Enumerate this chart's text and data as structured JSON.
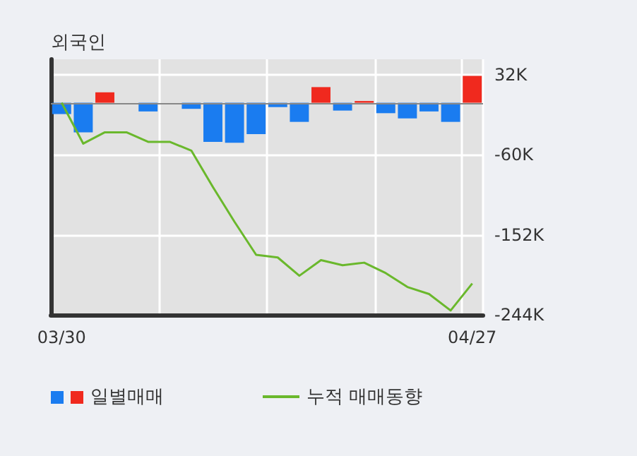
{
  "chart_data": {
    "type": "bar",
    "title": "외국인",
    "categories": [
      "03/30",
      null,
      null,
      null,
      null,
      null,
      null,
      null,
      null,
      null,
      null,
      null,
      null,
      null,
      null,
      null,
      null,
      null,
      null,
      "04/27"
    ],
    "series": [
      {
        "name": "일별매매",
        "colors": [
          "#1a7cf0",
          "#1a7cf0",
          "#f0291e",
          "#1a7cf0",
          "#1a7cf0",
          "#1a7cf0",
          "#1a7cf0",
          "#1a7cf0",
          "#1a7cf0",
          "#1a7cf0",
          "#1a7cf0",
          "#1a7cf0",
          "#f0291e",
          "#1a7cf0",
          "#f0291e",
          "#1a7cf0",
          "#1a7cf0",
          "#1a7cf0",
          "#1a7cf0",
          "#f0291e"
        ],
        "values": [
          -13,
          -34,
          12,
          0,
          -10,
          0,
          -7,
          -45,
          -46,
          -36,
          -5,
          -22,
          18,
          -9,
          2,
          -12,
          -18,
          -10,
          -22,
          31
        ]
      },
      {
        "name": "누적 매매동향",
        "type": "line",
        "color": "#6ab82c",
        "values": [
          0,
          -47,
          -34,
          -34,
          -45,
          -45,
          -55,
          -97,
          -137,
          -175,
          -178,
          -199,
          -181,
          -187,
          -184,
          -196,
          -212,
          -220,
          -239,
          -208
        ]
      }
    ],
    "ylim": [
      -244,
      50
    ],
    "yticks": [
      {
        "value": 32,
        "label": "32K"
      },
      {
        "value": -60,
        "label": "-60K"
      },
      {
        "value": -152,
        "label": "-152K"
      },
      {
        "value": -244,
        "label": "-244K"
      }
    ],
    "ref_lines": [
      {
        "axis": "y",
        "value": 0,
        "color": "#888888"
      }
    ],
    "grid": true,
    "legend": "bottom",
    "marker": "none"
  }
}
